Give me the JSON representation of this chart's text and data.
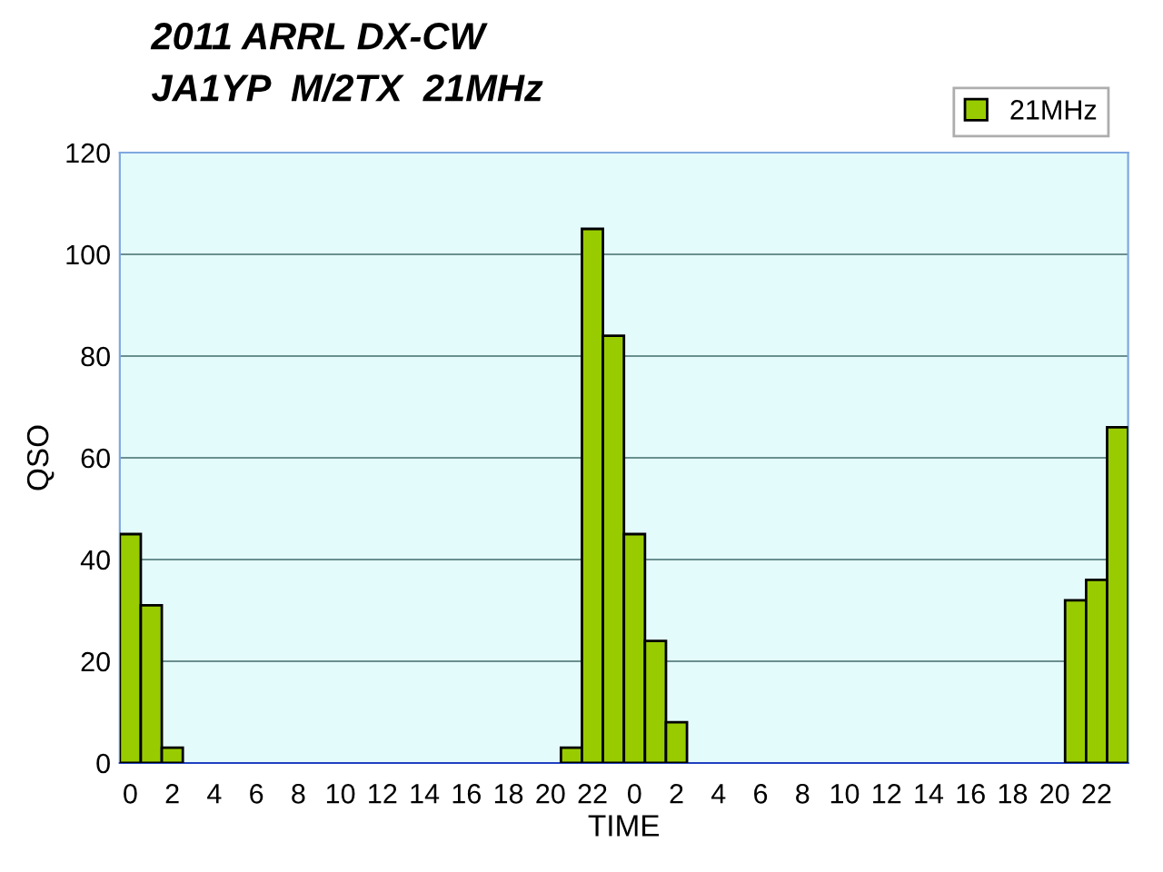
{
  "chart_data": {
    "type": "bar",
    "title": "2011 ARRL DX-CW\nJA1YP  M/2TX  21MHz",
    "xlabel": "TIME",
    "ylabel": "QSO",
    "categories": [
      "0",
      null,
      "2",
      null,
      "4",
      null,
      "6",
      null,
      "8",
      null,
      "10",
      null,
      "12",
      null,
      "14",
      null,
      "16",
      null,
      "18",
      null,
      "20",
      null,
      "22",
      null,
      "0",
      null,
      "2",
      null,
      "4",
      null,
      "6",
      null,
      "8",
      null,
      "10",
      null,
      "12",
      null,
      "14",
      null,
      "16",
      null,
      "18",
      null,
      "20",
      null,
      "22",
      null
    ],
    "series": [
      {
        "name": "21MHz",
        "color": "#99cc00",
        "values": [
          45,
          31,
          3,
          0,
          0,
          0,
          0,
          0,
          0,
          0,
          0,
          0,
          0,
          0,
          0,
          0,
          0,
          0,
          0,
          0,
          0,
          3,
          105,
          84,
          45,
          24,
          8,
          0,
          0,
          0,
          0,
          0,
          0,
          0,
          0,
          0,
          0,
          0,
          0,
          0,
          0,
          0,
          0,
          0,
          0,
          32,
          36,
          66
        ]
      }
    ],
    "ylim": [
      0,
      120
    ],
    "yticks": [
      0,
      20,
      40,
      60,
      80,
      100,
      120
    ],
    "grid": "y",
    "legend": "top right"
  }
}
